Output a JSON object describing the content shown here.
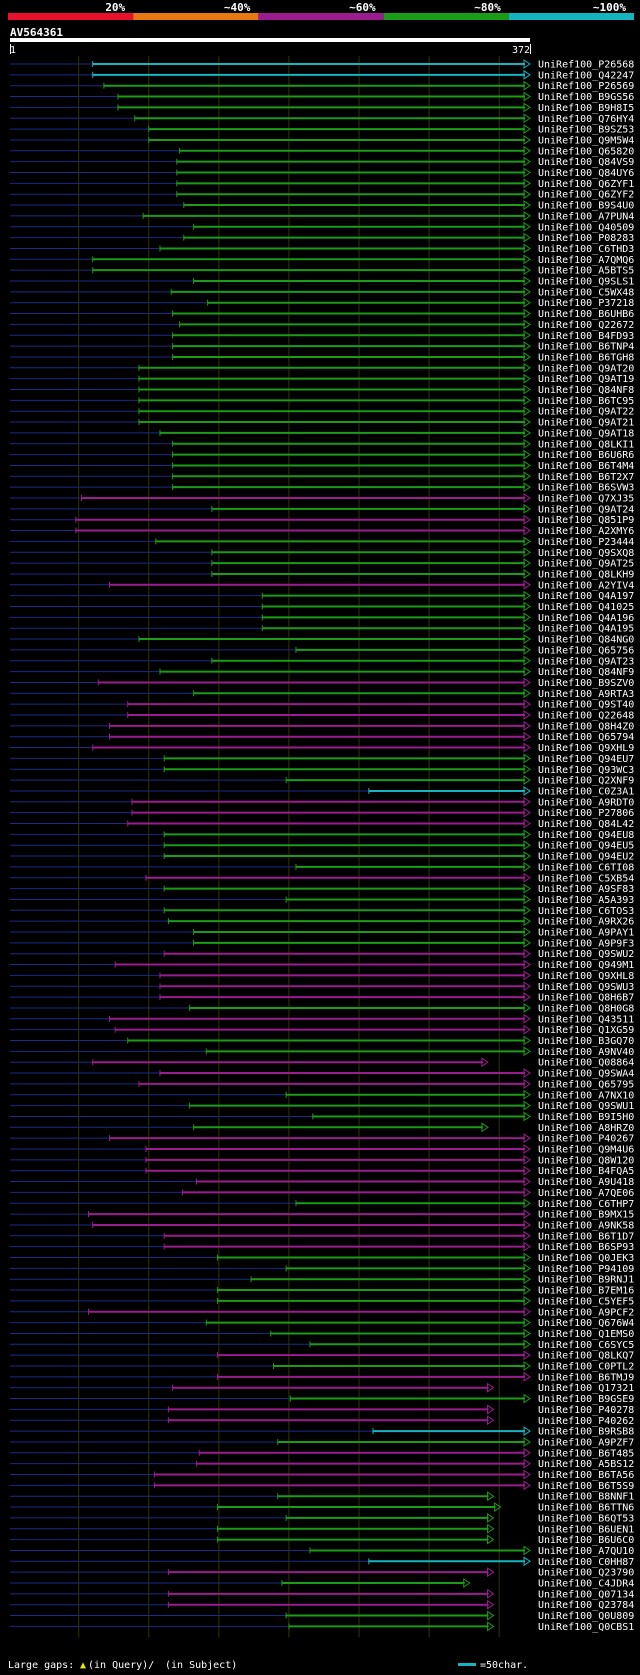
{
  "chart_data": {
    "type": "alignment-overview",
    "query_name": "AV564361",
    "query_range": {
      "start_label": "1",
      "end_label": "372",
      "start": 1,
      "end": 372
    },
    "legend_bins": [
      {
        "label": "20%",
        "color": "#e8112d"
      },
      {
        "label": "~40%",
        "color": "#e87812"
      },
      {
        "label": "~60%",
        "color": "#9b1c8f"
      },
      {
        "label": "~80%",
        "color": "#1a9c16"
      },
      {
        "label": "~100%",
        "color": "#15b5c0"
      }
    ],
    "footer": {
      "gaps_label": "Large gaps:",
      "in_query": "(in Query)/",
      "in_subject": "(in Subject)",
      "scale_label": "=50char."
    },
    "gridlines_x": [
      50,
      100,
      150,
      200,
      250,
      300,
      350
    ],
    "hits": [
      {
        "name": "UniRef100_P26568",
        "start": 60,
        "end": 372,
        "color": "#15b5c0"
      },
      {
        "name": "UniRef100_Q42247",
        "start": 60,
        "end": 372,
        "color": "#15b5c0"
      },
      {
        "name": "UniRef100_P26569",
        "start": 68,
        "end": 372,
        "color": "#1a9c16"
      },
      {
        "name": "UniRef100_B9GS56",
        "start": 78,
        "end": 372,
        "color": "#1a9c16"
      },
      {
        "name": "UniRef100_B9H8I5",
        "start": 78,
        "end": 372,
        "color": "#1a9c16"
      },
      {
        "name": "UniRef100_Q76HY4",
        "start": 90,
        "end": 372,
        "color": "#1a9c16"
      },
      {
        "name": "UniRef100_B9SZ53",
        "start": 100,
        "end": 372,
        "color": "#1a9c16"
      },
      {
        "name": "UniRef100_Q9M5W4",
        "start": 100,
        "end": 372,
        "color": "#1a9c16"
      },
      {
        "name": "UniRef100_Q65820",
        "start": 122,
        "end": 372,
        "color": "#1a9c16"
      },
      {
        "name": "UniRef100_Q84VS9",
        "start": 120,
        "end": 372,
        "color": "#1a9c16"
      },
      {
        "name": "UniRef100_Q84UY6",
        "start": 120,
        "end": 372,
        "color": "#1a9c16"
      },
      {
        "name": "UniRef100_Q6ZYF1",
        "start": 120,
        "end": 372,
        "color": "#1a9c16"
      },
      {
        "name": "UniRef100_Q6ZYF2",
        "start": 120,
        "end": 372,
        "color": "#1a9c16"
      },
      {
        "name": "UniRef100_B9S4U0",
        "start": 125,
        "end": 372,
        "color": "#1a9c16"
      },
      {
        "name": "UniRef100_A7PUN4",
        "start": 96,
        "end": 372,
        "color": "#1a9c16"
      },
      {
        "name": "UniRef100_Q40509",
        "start": 132,
        "end": 372,
        "color": "#1a9c16"
      },
      {
        "name": "UniRef100_P08283",
        "start": 125,
        "end": 372,
        "color": "#1a9c16"
      },
      {
        "name": "UniRef100_C6THD3",
        "start": 108,
        "end": 372,
        "color": "#1a9c16"
      },
      {
        "name": "UniRef100_A7QMQ6",
        "start": 60,
        "end": 372,
        "color": "#1a9c16"
      },
      {
        "name": "UniRef100_A5BTS5",
        "start": 60,
        "end": 372,
        "color": "#1a9c16"
      },
      {
        "name": "UniRef100_Q9SLS1",
        "start": 132,
        "end": 372,
        "color": "#1a9c16"
      },
      {
        "name": "UniRef100_C5WX48",
        "start": 116,
        "end": 372,
        "color": "#1a9c16"
      },
      {
        "name": "UniRef100_P37218",
        "start": 142,
        "end": 372,
        "color": "#1a9c16"
      },
      {
        "name": "UniRef100_B6UHB6",
        "start": 117,
        "end": 372,
        "color": "#1a9c16"
      },
      {
        "name": "UniRef100_Q22672",
        "start": 122,
        "end": 372,
        "color": "#1a9c16"
      },
      {
        "name": "UniRef100_B4FD93",
        "start": 117,
        "end": 372,
        "color": "#1a9c16"
      },
      {
        "name": "UniRef100_B6TNP4",
        "start": 117,
        "end": 372,
        "color": "#1a9c16"
      },
      {
        "name": "UniRef100_B6TGH8",
        "start": 117,
        "end": 372,
        "color": "#1a9c16"
      },
      {
        "name": "UniRef100_Q9AT20",
        "start": 93,
        "end": 372,
        "color": "#1a9c16"
      },
      {
        "name": "UniRef100_Q9AT19",
        "start": 93,
        "end": 372,
        "color": "#1a9c16"
      },
      {
        "name": "UniRef100_Q84NF8",
        "start": 93,
        "end": 372,
        "color": "#1a9c16"
      },
      {
        "name": "UniRef100_B6TC95",
        "start": 93,
        "end": 372,
        "color": "#1a9c16"
      },
      {
        "name": "UniRef100_Q9AT22",
        "start": 93,
        "end": 372,
        "color": "#1a9c16"
      },
      {
        "name": "UniRef100_Q9AT21",
        "start": 93,
        "end": 372,
        "color": "#1a9c16"
      },
      {
        "name": "UniRef100_Q9AT18",
        "start": 108,
        "end": 372,
        "color": "#1a9c16"
      },
      {
        "name": "UniRef100_Q8LKI1",
        "start": 117,
        "end": 372,
        "color": "#1a9c16"
      },
      {
        "name": "UniRef100_B6U6R6",
        "start": 117,
        "end": 372,
        "color": "#1a9c16"
      },
      {
        "name": "UniRef100_B6T4M4",
        "start": 117,
        "end": 372,
        "color": "#1a9c16"
      },
      {
        "name": "UniRef100_B6T2X7",
        "start": 117,
        "end": 372,
        "color": "#1a9c16"
      },
      {
        "name": "UniRef100_B6SVW3",
        "start": 117,
        "end": 372,
        "color": "#1a9c16"
      },
      {
        "name": "UniRef100_Q7XJ35",
        "start": 52,
        "end": 372,
        "color": "#9b1c8f"
      },
      {
        "name": "UniRef100_Q9AT24",
        "start": 145,
        "end": 372,
        "color": "#1a9c16"
      },
      {
        "name": "UniRef100_Q851P9",
        "start": 48,
        "end": 372,
        "color": "#9b1c8f"
      },
      {
        "name": "UniRef100_A2XMY6",
        "start": 48,
        "end": 372,
        "color": "#9b1c8f"
      },
      {
        "name": "UniRef100_P23444",
        "start": 105,
        "end": 372,
        "color": "#1a9c16"
      },
      {
        "name": "UniRef100_Q9SXQ8",
        "start": 145,
        "end": 372,
        "color": "#1a9c16"
      },
      {
        "name": "UniRef100_Q9AT25",
        "start": 145,
        "end": 372,
        "color": "#1a9c16"
      },
      {
        "name": "UniRef100_Q8LKH9",
        "start": 145,
        "end": 372,
        "color": "#1a9c16"
      },
      {
        "name": "UniRef100_A2YIV4",
        "start": 72,
        "end": 372,
        "color": "#9b1c8f"
      },
      {
        "name": "UniRef100_Q4A197",
        "start": 181,
        "end": 372,
        "color": "#1a9c16"
      },
      {
        "name": "UniRef100_Q41025",
        "start": 181,
        "end": 372,
        "color": "#1a9c16"
      },
      {
        "name": "UniRef100_Q4A196",
        "start": 181,
        "end": 372,
        "color": "#1a9c16"
      },
      {
        "name": "UniRef100_Q4A195",
        "start": 181,
        "end": 372,
        "color": "#1a9c16"
      },
      {
        "name": "UniRef100_Q84NG0",
        "start": 93,
        "end": 372,
        "color": "#1a9c16"
      },
      {
        "name": "UniRef100_Q65756",
        "start": 205,
        "end": 372,
        "color": "#1a9c16"
      },
      {
        "name": "UniRef100_Q9AT23",
        "start": 145,
        "end": 372,
        "color": "#1a9c16"
      },
      {
        "name": "UniRef100_Q84NF9",
        "start": 108,
        "end": 372,
        "color": "#1a9c16"
      },
      {
        "name": "UniRef100_B9SZV0",
        "start": 64,
        "end": 372,
        "color": "#9b1c8f"
      },
      {
        "name": "UniRef100_A9RTA3",
        "start": 132,
        "end": 372,
        "color": "#1a9c16"
      },
      {
        "name": "UniRef100_Q9ST40",
        "start": 85,
        "end": 372,
        "color": "#9b1c8f"
      },
      {
        "name": "UniRef100_Q22648",
        "start": 85,
        "end": 372,
        "color": "#9b1c8f"
      },
      {
        "name": "UniRef100_Q8H4Z0",
        "start": 72,
        "end": 372,
        "color": "#9b1c8f"
      },
      {
        "name": "UniRef100_Q65794",
        "start": 72,
        "end": 372,
        "color": "#9b1c8f"
      },
      {
        "name": "UniRef100_Q9XHL9",
        "start": 60,
        "end": 372,
        "color": "#9b1c8f"
      },
      {
        "name": "UniRef100_Q94EU7",
        "start": 111,
        "end": 372,
        "color": "#1a9c16"
      },
      {
        "name": "UniRef100_Q93WC3",
        "start": 111,
        "end": 372,
        "color": "#1a9c16"
      },
      {
        "name": "UniRef100_Q2XNF9",
        "start": 198,
        "end": 372,
        "color": "#1a9c16"
      },
      {
        "name": "UniRef100_C0Z3A1",
        "start": 257,
        "end": 372,
        "color": "#15b5c0"
      },
      {
        "name": "UniRef100_A9RDT0",
        "start": 88,
        "end": 372,
        "color": "#9b1c8f"
      },
      {
        "name": "UniRef100_P27806",
        "start": 88,
        "end": 372,
        "color": "#9b1c8f"
      },
      {
        "name": "UniRef100_Q84L42",
        "start": 85,
        "end": 372,
        "color": "#9b1c8f"
      },
      {
        "name": "UniRef100_Q94EU8",
        "start": 111,
        "end": 372,
        "color": "#1a9c16"
      },
      {
        "name": "UniRef100_Q94EU5",
        "start": 111,
        "end": 372,
        "color": "#1a9c16"
      },
      {
        "name": "UniRef100_Q94EU2",
        "start": 111,
        "end": 372,
        "color": "#1a9c16"
      },
      {
        "name": "UniRef100_C6TI08",
        "start": 205,
        "end": 372,
        "color": "#1a9c16"
      },
      {
        "name": "UniRef100_C5XB54",
        "start": 98,
        "end": 372,
        "color": "#9b1c8f"
      },
      {
        "name": "UniRef100_A9SF83",
        "start": 111,
        "end": 372,
        "color": "#1a9c16"
      },
      {
        "name": "UniRef100_A5A393",
        "start": 198,
        "end": 372,
        "color": "#1a9c16"
      },
      {
        "name": "UniRef100_C6TOS3",
        "start": 111,
        "end": 372,
        "color": "#1a9c16"
      },
      {
        "name": "UniRef100_A9RX26",
        "start": 114,
        "end": 372,
        "color": "#1a9c16"
      },
      {
        "name": "UniRef100_A9PAY1",
        "start": 132,
        "end": 372,
        "color": "#1a9c16"
      },
      {
        "name": "UniRef100_A9P9F3",
        "start": 132,
        "end": 372,
        "color": "#1a9c16"
      },
      {
        "name": "UniRef100_Q9SWU2",
        "start": 111,
        "end": 372,
        "color": "#9b1c8f"
      },
      {
        "name": "UniRef100_Q949M1",
        "start": 76,
        "end": 372,
        "color": "#9b1c8f"
      },
      {
        "name": "UniRef100_Q9XHL8",
        "start": 108,
        "end": 372,
        "color": "#9b1c8f"
      },
      {
        "name": "UniRef100_Q9SWU3",
        "start": 108,
        "end": 372,
        "color": "#9b1c8f"
      },
      {
        "name": "UniRef100_Q8H6B7",
        "start": 108,
        "end": 372,
        "color": "#9b1c8f"
      },
      {
        "name": "UniRef100_Q8H0G8",
        "start": 129,
        "end": 372,
        "color": "#1a9c16"
      },
      {
        "name": "UniRef100_Q43511",
        "start": 72,
        "end": 372,
        "color": "#9b1c8f"
      },
      {
        "name": "UniRef100_Q1XG59",
        "start": 76,
        "end": 372,
        "color": "#9b1c8f"
      },
      {
        "name": "UniRef100_B3GQ70",
        "start": 85,
        "end": 372,
        "color": "#1a9c16"
      },
      {
        "name": "UniRef100_A9NV40",
        "start": 141,
        "end": 372,
        "color": "#1a9c16"
      },
      {
        "name": "UniRef100_Q08864",
        "start": 60,
        "end": 342,
        "color": "#9b1c8f"
      },
      {
        "name": "UniRef100_Q9SWA4",
        "start": 108,
        "end": 372,
        "color": "#9b1c8f"
      },
      {
        "name": "UniRef100_Q65795",
        "start": 93,
        "end": 372,
        "color": "#9b1c8f"
      },
      {
        "name": "UniRef100_A7NX10",
        "start": 198,
        "end": 372,
        "color": "#1a9c16"
      },
      {
        "name": "UniRef100_Q9SWU1",
        "start": 129,
        "end": 372,
        "color": "#1a9c16"
      },
      {
        "name": "UniRef100_B9I5H0",
        "start": 217,
        "end": 372,
        "color": "#1a9c16"
      },
      {
        "name": "UniRef100_A8HRZ0",
        "start": 132,
        "end": 342,
        "color": "#1a9c16"
      },
      {
        "name": "UniRef100_P40267",
        "start": 72,
        "end": 372,
        "color": "#9b1c8f"
      },
      {
        "name": "UniRef100_Q9M4U6",
        "start": 98,
        "end": 372,
        "color": "#9b1c8f"
      },
      {
        "name": "UniRef100_Q8W120",
        "start": 98,
        "end": 372,
        "color": "#9b1c8f"
      },
      {
        "name": "UniRef100_B4FQA5",
        "start": 98,
        "end": 372,
        "color": "#9b1c8f"
      },
      {
        "name": "UniRef100_A9U418",
        "start": 134,
        "end": 372,
        "color": "#9b1c8f"
      },
      {
        "name": "UniRef100_A7QE06",
        "start": 124,
        "end": 372,
        "color": "#9b1c8f"
      },
      {
        "name": "UniRef100_C6THP7",
        "start": 205,
        "end": 372,
        "color": "#1a9c16"
      },
      {
        "name": "UniRef100_B9MX15",
        "start": 57,
        "end": 372,
        "color": "#9b1c8f"
      },
      {
        "name": "UniRef100_A9NK58",
        "start": 60,
        "end": 372,
        "color": "#9b1c8f"
      },
      {
        "name": "UniRef100_B6T1D7",
        "start": 111,
        "end": 372,
        "color": "#9b1c8f"
      },
      {
        "name": "UniRef100_B6SP93",
        "start": 111,
        "end": 372,
        "color": "#9b1c8f"
      },
      {
        "name": "UniRef100_Q0JEK3",
        "start": 149,
        "end": 372,
        "color": "#1a9c16"
      },
      {
        "name": "UniRef100_P94109",
        "start": 198,
        "end": 372,
        "color": "#1a9c16"
      },
      {
        "name": "UniRef100_B9RNJ1",
        "start": 173,
        "end": 372,
        "color": "#1a9c16"
      },
      {
        "name": "UniRef100_B7EM16",
        "start": 149,
        "end": 372,
        "color": "#1a9c16"
      },
      {
        "name": "UniRef100_C5YEF5",
        "start": 149,
        "end": 372,
        "color": "#1a9c16"
      },
      {
        "name": "UniRef100_A9PCF2",
        "start": 57,
        "end": 372,
        "color": "#9b1c8f"
      },
      {
        "name": "UniRef100_Q676W4",
        "start": 141,
        "end": 372,
        "color": "#1a9c16"
      },
      {
        "name": "UniRef100_Q1EMS0",
        "start": 187,
        "end": 372,
        "color": "#1a9c16"
      },
      {
        "name": "UniRef100_C6SYC5",
        "start": 215,
        "end": 372,
        "color": "#1a9c16"
      },
      {
        "name": "UniRef100_Q8LKQ7",
        "start": 149,
        "end": 372,
        "color": "#9b1c8f"
      },
      {
        "name": "UniRef100_C0PTL2",
        "start": 189,
        "end": 372,
        "color": "#1a9c16"
      },
      {
        "name": "UniRef100_B6TMJ9",
        "start": 149,
        "end": 372,
        "color": "#9b1c8f"
      },
      {
        "name": "UniRef100_Q17321",
        "start": 117,
        "end": 346,
        "color": "#9b1c8f"
      },
      {
        "name": "UniRef100_B9GSE9",
        "start": 201,
        "end": 372,
        "color": "#1a9c16"
      },
      {
        "name": "UniRef100_P40278",
        "start": 114,
        "end": 346,
        "color": "#9b1c8f"
      },
      {
        "name": "UniRef100_P40262",
        "start": 114,
        "end": 346,
        "color": "#9b1c8f"
      },
      {
        "name": "UniRef100_B9RSB8",
        "start": 260,
        "end": 372,
        "color": "#15b5c0"
      },
      {
        "name": "UniRef100_A9PZF7",
        "start": 192,
        "end": 372,
        "color": "#1a9c16"
      },
      {
        "name": "UniRef100_B6T485",
        "start": 136,
        "end": 372,
        "color": "#9b1c8f"
      },
      {
        "name": "UniRef100_A5BS12",
        "start": 134,
        "end": 372,
        "color": "#9b1c8f"
      },
      {
        "name": "UniRef100_B6TA56",
        "start": 104,
        "end": 372,
        "color": "#9b1c8f"
      },
      {
        "name": "UniRef100_B6T5S9",
        "start": 104,
        "end": 372,
        "color": "#9b1c8f"
      },
      {
        "name": "UniRef100_B8NNF1",
        "start": 192,
        "end": 346,
        "color": "#1a9c16"
      },
      {
        "name": "UniRef100_B6TTN6",
        "start": 149,
        "end": 351,
        "color": "#1a9c16"
      },
      {
        "name": "UniRef100_B6QT53",
        "start": 198,
        "end": 346,
        "color": "#1a9c16"
      },
      {
        "name": "UniRef100_B6UEN1",
        "start": 149,
        "end": 346,
        "color": "#1a9c16"
      },
      {
        "name": "UniRef100_B6U6C0",
        "start": 149,
        "end": 346,
        "color": "#1a9c16"
      },
      {
        "name": "UniRef100_A7QU10",
        "start": 215,
        "end": 372,
        "color": "#1a9c16"
      },
      {
        "name": "UniRef100_C0HH87",
        "start": 257,
        "end": 372,
        "color": "#15b5c0"
      },
      {
        "name": "UniRef100_Q23790",
        "start": 114,
        "end": 346,
        "color": "#9b1c8f"
      },
      {
        "name": "UniRef100_C4JDR4",
        "start": 195,
        "end": 329,
        "color": "#1a9c16"
      },
      {
        "name": "UniRef100_Q07134",
        "start": 114,
        "end": 346,
        "color": "#9b1c8f"
      },
      {
        "name": "UniRef100_Q23784",
        "start": 114,
        "end": 346,
        "color": "#9b1c8f"
      },
      {
        "name": "UniRef100_Q0U809",
        "start": 198,
        "end": 346,
        "color": "#1a9c16"
      },
      {
        "name": "UniRef100_Q0CBS1",
        "start": 200,
        "end": 346,
        "color": "#1a9c16"
      }
    ]
  }
}
